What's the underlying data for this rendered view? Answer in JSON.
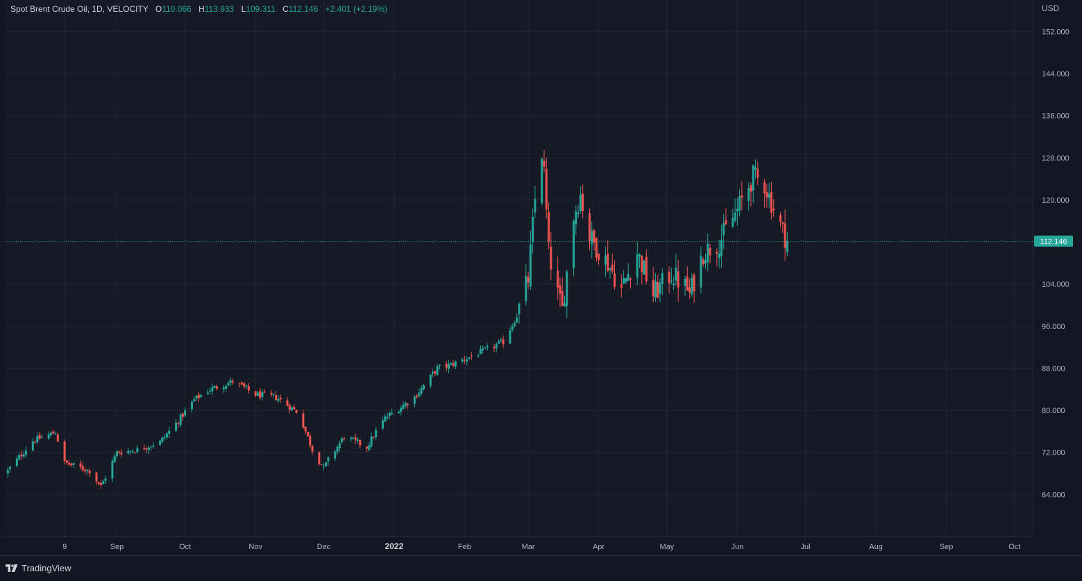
{
  "legend": {
    "symbol": "Spot Brent Crude Oil, 1D, VELOCITY",
    "o_label": "O",
    "o_value": "110.066",
    "h_label": "H",
    "h_value": "113.933",
    "l_label": "L",
    "l_value": "109.311",
    "c_label": "C",
    "c_value": "112.146",
    "change": "+2.401 (+2.19%)"
  },
  "price_axis": {
    "currency": "USD",
    "last_price_label": "112.146"
  },
  "footer": {
    "brand": "TradingView"
  },
  "colors": {
    "up": "#26a69a",
    "down": "#ef5350",
    "background": "#161a25",
    "grid": "#232632",
    "text": "#b2b5be"
  },
  "chart_data": {
    "type": "candlestick",
    "ylim": [
      56,
      158
    ],
    "y_ticks": [
      152,
      144,
      136,
      128,
      120,
      112,
      104,
      96,
      88,
      80,
      72,
      64
    ],
    "y_tick_labels": [
      "152.000",
      "144.000",
      "136.000",
      "128.000",
      "120.000",
      "112.000",
      "104.000",
      "96.000",
      "88.000",
      "80.000",
      "72.000",
      "64.000"
    ],
    "x_ticks": [
      {
        "label": "9",
        "date": "2021-08-09"
      },
      {
        "label": "Sep",
        "date": "2021-09-01"
      },
      {
        "label": "Oct",
        "date": "2021-10-01"
      },
      {
        "label": "Nov",
        "date": "2021-11-01"
      },
      {
        "label": "Dec",
        "date": "2021-12-01"
      },
      {
        "label": "2022",
        "date": "2022-01-01"
      },
      {
        "label": "Feb",
        "date": "2022-02-01"
      },
      {
        "label": "Mar",
        "date": "2022-03-01"
      },
      {
        "label": "Apr",
        "date": "2022-04-01"
      },
      {
        "label": "May",
        "date": "2022-05-01"
      },
      {
        "label": "Jun",
        "date": "2022-06-01"
      },
      {
        "label": "Jul",
        "date": "2022-07-01"
      },
      {
        "label": "Aug",
        "date": "2022-08-01"
      },
      {
        "label": "Sep",
        "date": "2022-09-01"
      },
      {
        "label": "Oct",
        "date": "2022-10-01"
      }
    ],
    "xlim": [
      "2021-07-14",
      "2022-10-09"
    ],
    "last_price": 112.146,
    "anchor_dates": [
      "2021-07-15",
      "2021-07-26",
      "2021-08-05",
      "2021-08-09",
      "2021-08-20",
      "2021-08-25",
      "2021-09-01",
      "2021-09-10",
      "2021-09-20",
      "2021-09-28",
      "2021-10-05",
      "2021-10-12",
      "2021-10-22",
      "2021-10-26",
      "2021-11-01",
      "2021-11-10",
      "2021-11-20",
      "2021-11-26",
      "2021-12-01",
      "2021-12-03",
      "2021-12-10",
      "2021-12-20",
      "2021-12-24",
      "2021-12-28",
      "2022-01-10",
      "2022-01-20",
      "2022-01-25",
      "2022-02-08",
      "2022-02-18",
      "2022-02-24",
      "2022-03-01",
      "2022-03-04",
      "2022-03-07",
      "2022-03-08",
      "2022-03-10",
      "2022-03-14",
      "2022-03-16",
      "2022-03-21",
      "2022-03-24",
      "2022-03-28",
      "2022-04-05",
      "2022-04-11",
      "2022-04-18",
      "2022-04-25",
      "2022-05-03",
      "2022-05-10",
      "2022-05-11",
      "2022-05-17",
      "2022-05-24",
      "2022-05-30",
      "2022-06-01",
      "2022-06-08",
      "2022-06-13",
      "2022-06-16",
      "2022-06-21",
      "2022-06-23"
    ],
    "anchor_closes": [
      68.5,
      74.2,
      75.8,
      70.0,
      68.5,
      65.5,
      72.0,
      72.5,
      74.0,
      78.0,
      82.0,
      84.0,
      85.5,
      84.5,
      83.0,
      82.5,
      79.5,
      72.5,
      69.0,
      70.5,
      75.0,
      73.0,
      76.0,
      78.5,
      82.5,
      88.0,
      88.5,
      91.0,
      93.0,
      98.0,
      105.0,
      120.0,
      129.0,
      125.0,
      110.0,
      102.0,
      99.0,
      117.0,
      121.0,
      113.0,
      108.0,
      103.0,
      110.0,
      102.0,
      106.0,
      103.0,
      102.0,
      110.0,
      112.0,
      116.5,
      118.0,
      124.5,
      123.0,
      119.5,
      114.0,
      112.146
    ]
  }
}
